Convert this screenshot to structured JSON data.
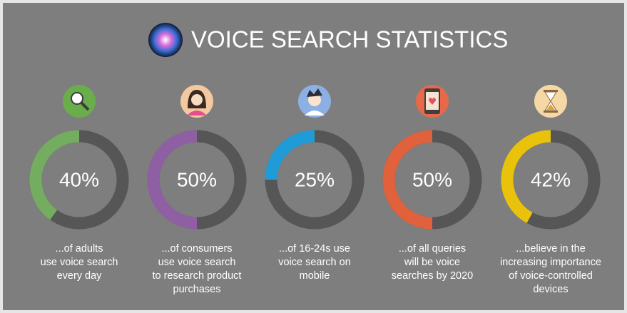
{
  "title": "VOICE SEARCH STATISTICS",
  "chart_data": [
    {
      "type": "donut",
      "values": [
        40
      ],
      "value_labels": [
        "40%"
      ],
      "ylim": [
        0,
        100
      ],
      "color": "#74ad5f",
      "caption": [
        "...of adults",
        "use voice search",
        "every day"
      ]
    },
    {
      "type": "donut",
      "values": [
        50
      ],
      "value_labels": [
        "50%"
      ],
      "ylim": [
        0,
        100
      ],
      "color": "#8f5fa3",
      "caption": [
        "...of consumers",
        "use voice search",
        "to research product",
        "purchases"
      ]
    },
    {
      "type": "donut",
      "values": [
        25
      ],
      "value_labels": [
        "25%"
      ],
      "ylim": [
        0,
        100
      ],
      "color": "#1f9bd7",
      "caption": [
        "...of 16-24s use",
        "voice search on",
        "mobile"
      ]
    },
    {
      "type": "donut",
      "values": [
        50
      ],
      "value_labels": [
        "50%"
      ],
      "ylim": [
        0,
        100
      ],
      "color": "#e0613b",
      "caption": [
        "...of all queries",
        "will be voice",
        "searches by 2020"
      ]
    },
    {
      "type": "donut",
      "values": [
        42
      ],
      "value_labels": [
        "42%"
      ],
      "ylim": [
        0,
        100
      ],
      "color": "#e9c30b",
      "caption": [
        "...believe in the",
        "increasing importance",
        "of voice-controlled",
        "devices"
      ]
    }
  ]
}
